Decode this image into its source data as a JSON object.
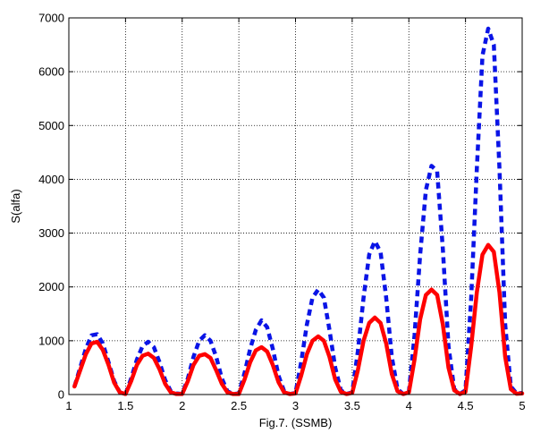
{
  "chart_data": {
    "type": "line",
    "title": "",
    "xlabel": "Fig.7. (SSMB)",
    "ylabel": "S(alfa)",
    "xlim": [
      1,
      5
    ],
    "ylim": [
      0,
      7000
    ],
    "x_ticks": [
      "1",
      "1.5",
      "2",
      "2.5",
      "3",
      "3.5",
      "4",
      "4.5",
      "5"
    ],
    "y_ticks": [
      "0",
      "1000",
      "2000",
      "3000",
      "4000",
      "5000",
      "6000",
      "7000"
    ],
    "grid": true,
    "colors": {
      "dashed": "#0a14e6",
      "solid": "#ff0000",
      "grid": "#000000"
    },
    "series": [
      {
        "style": "dashed",
        "color": "#0a14e6",
        "x": [
          1.05,
          1.1,
          1.15,
          1.2,
          1.25,
          1.3,
          1.35,
          1.4,
          1.45,
          1.5,
          1.55,
          1.6,
          1.65,
          1.7,
          1.75,
          1.8,
          1.85,
          1.9,
          1.95,
          2.0,
          2.05,
          2.1,
          2.15,
          2.2,
          2.25,
          2.3,
          2.35,
          2.4,
          2.45,
          2.5,
          2.55,
          2.6,
          2.65,
          2.7,
          2.75,
          2.8,
          2.85,
          2.9,
          2.95,
          3.0,
          3.05,
          3.1,
          3.15,
          3.2,
          3.25,
          3.3,
          3.35,
          3.4,
          3.45,
          3.5,
          3.55,
          3.6,
          3.65,
          3.7,
          3.75,
          3.8,
          3.85,
          3.9,
          3.95,
          4.0,
          4.05,
          4.1,
          4.15,
          4.2,
          4.25,
          4.3,
          4.35,
          4.4,
          4.45,
          4.5,
          4.55,
          4.6,
          4.65,
          4.7,
          4.75,
          4.8,
          4.85,
          4.9,
          4.95,
          5.0
        ],
        "y": [
          150,
          500,
          850,
          1100,
          1120,
          950,
          600,
          250,
          40,
          10,
          300,
          650,
          900,
          980,
          880,
          600,
          270,
          60,
          20,
          10,
          300,
          700,
          1000,
          1100,
          1000,
          700,
          300,
          60,
          10,
          20,
          400,
          850,
          1200,
          1380,
          1250,
          850,
          350,
          60,
          10,
          30,
          600,
          1300,
          1800,
          1950,
          1800,
          1200,
          500,
          80,
          10,
          40,
          800,
          1800,
          2600,
          2850,
          2650,
          1800,
          700,
          100,
          10,
          50,
          1100,
          2600,
          3800,
          4250,
          4150,
          2700,
          900,
          100,
          10,
          80,
          1800,
          4200,
          6300,
          6800,
          6500,
          4200,
          1300,
          150,
          20,
          30
        ]
      },
      {
        "style": "solid",
        "color": "#ff0000",
        "x": [
          1.05,
          1.1,
          1.15,
          1.2,
          1.25,
          1.3,
          1.35,
          1.4,
          1.45,
          1.5,
          1.55,
          1.6,
          1.65,
          1.7,
          1.75,
          1.8,
          1.85,
          1.9,
          1.95,
          2.0,
          2.05,
          2.1,
          2.15,
          2.2,
          2.25,
          2.3,
          2.35,
          2.4,
          2.45,
          2.5,
          2.55,
          2.6,
          2.65,
          2.7,
          2.75,
          2.8,
          2.85,
          2.9,
          2.95,
          3.0,
          3.05,
          3.1,
          3.15,
          3.2,
          3.25,
          3.3,
          3.35,
          3.4,
          3.45,
          3.5,
          3.55,
          3.6,
          3.65,
          3.7,
          3.75,
          3.8,
          3.85,
          3.9,
          3.95,
          4.0,
          4.05,
          4.1,
          4.15,
          4.2,
          4.25,
          4.3,
          4.35,
          4.4,
          4.45,
          4.5,
          4.55,
          4.6,
          4.65,
          4.7,
          4.75,
          4.8,
          4.85,
          4.9,
          4.95,
          5.0
        ],
        "y": [
          150,
          450,
          750,
          950,
          980,
          830,
          550,
          220,
          40,
          10,
          250,
          550,
          720,
          760,
          680,
          470,
          200,
          40,
          10,
          10,
          250,
          550,
          720,
          750,
          680,
          450,
          200,
          40,
          10,
          10,
          280,
          600,
          820,
          880,
          800,
          550,
          230,
          40,
          10,
          20,
          350,
          750,
          1000,
          1080,
          1000,
          700,
          280,
          50,
          10,
          30,
          450,
          1000,
          1330,
          1430,
          1330,
          950,
          380,
          60,
          10,
          40,
          650,
          1400,
          1850,
          1950,
          1850,
          1300,
          500,
          80,
          10,
          50,
          900,
          1900,
          2600,
          2780,
          2650,
          1900,
          700,
          100,
          15,
          20
        ]
      }
    ]
  }
}
